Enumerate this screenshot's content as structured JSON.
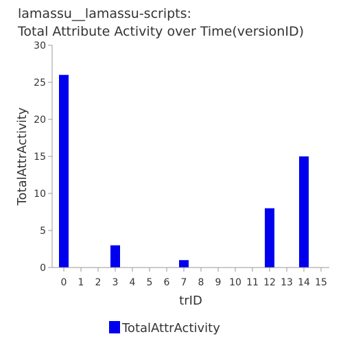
{
  "chart_data": {
    "type": "bar",
    "title_lines": [
      "lamassu__lamassu-scripts:",
      "Total Attribute Activity over Time(versionID)"
    ],
    "xlabel": "trID",
    "ylabel": "TotalAttrActivity",
    "categories": [
      "0",
      "1",
      "2",
      "3",
      "4",
      "5",
      "6",
      "7",
      "8",
      "9",
      "10",
      "11",
      "12",
      "13",
      "14",
      "15"
    ],
    "series": [
      {
        "name": "TotalAttrActivity",
        "color": "#0000ee",
        "values": [
          26,
          0,
          0,
          3,
          0,
          0,
          0,
          1,
          0,
          0,
          0,
          0,
          8,
          0,
          15,
          0
        ]
      }
    ],
    "ylim": [
      0,
      30
    ],
    "yticks": [
      0,
      5,
      10,
      15,
      20,
      25,
      30
    ],
    "grid": false,
    "legend": "bottom-left"
  }
}
